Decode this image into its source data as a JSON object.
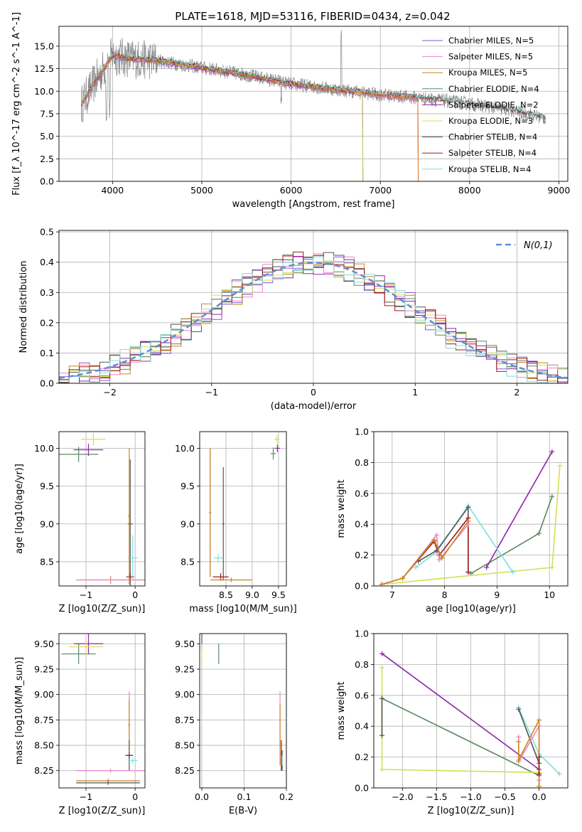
{
  "figure": {
    "title": "PLATE=1618, MJD=53116, FIBERID=0434, z=0.042"
  },
  "colors": {
    "Chabrier MILES": "#8a56d8",
    "Salpeter MILES": "#ee82c8",
    "Kroupa MILES": "#c8871e",
    "Chabrier ELODIE": "#5a8a63",
    "Salpeter ELODIE": "#8e24aa",
    "Kroupa ELODIE": "#d2e052",
    "Chabrier STELIB": "#555555",
    "Salpeter STELIB": "#a01818",
    "Kroupa STELIB": "#80dede",
    "spectrum": "#888888",
    "model_orange": "#e07a2c",
    "normal_curve": "#5b8fd6",
    "grid": "#b0b0b0"
  },
  "chart_data": [
    {
      "id": "spectrum",
      "type": "line",
      "xlabel": "wavelength [Angstrom, rest frame]",
      "ylabel": "Flux [f_λ 10^-17 erg cm^-2 s^-1 A^-1]",
      "xlim": [
        3400,
        9100
      ],
      "ylim": [
        0,
        17.2
      ],
      "xticks": [
        4000,
        5000,
        6000,
        7000,
        8000,
        9000
      ],
      "yticks": [
        0.0,
        2.5,
        5.0,
        7.5,
        10.0,
        12.5,
        15.0
      ],
      "legend": "top-right",
      "continuum": {
        "x": [
          3650,
          3800,
          4000,
          4200,
          4500,
          5000,
          5500,
          6000,
          6500,
          7000,
          7500,
          8000,
          8500,
          8850
        ],
        "y": [
          8.5,
          11.0,
          14.0,
          13.6,
          13.4,
          12.6,
          11.8,
          10.8,
          10.2,
          9.6,
          9.2,
          8.6,
          7.8,
          7.0
        ]
      },
      "series": [
        {
          "name": "Chabrier MILES, N_SSP=5",
          "end_x": 7420
        },
        {
          "name": "Salpeter MILES, N_SSP=5",
          "end_x": 7420
        },
        {
          "name": "Kroupa MILES, N_SSP=5",
          "end_x": 7420
        },
        {
          "name": "Chabrier ELODIE, N_SSP=4",
          "end_x": 6800
        },
        {
          "name": "Salpeter ELODIE, N_SSP=2",
          "end_x": 6800
        },
        {
          "name": "Kroupa ELODIE, N_SSP=3",
          "end_x": 6800
        },
        {
          "name": "Chabrier STELIB, N_SSP=4",
          "end_x": 8850
        },
        {
          "name": "Salpeter STELIB, N_SSP=4",
          "end_x": 8850
        },
        {
          "name": "Kroupa STELIB, N_SSP=4",
          "end_x": 8850
        }
      ]
    },
    {
      "id": "residuals",
      "type": "line",
      "xlabel": "(data-model)/error",
      "ylabel": "Normed distribution",
      "xlim": [
        -2.5,
        2.5
      ],
      "ylim": [
        0,
        0.505
      ],
      "xticks": [
        -2,
        -1,
        0,
        1,
        2
      ],
      "yticks": [
        0.0,
        0.1,
        0.2,
        0.3,
        0.4,
        0.5
      ],
      "legend": "top-right",
      "normal_label": "N(0,1)",
      "bin_width": 0.1
    },
    {
      "id": "age_vs_Z",
      "type": "scatter",
      "xlabel": "Z [log10(Z/Z_sun)]",
      "ylabel": "age  [log10(age/yr)]",
      "xlim": [
        -1.55,
        0.2
      ],
      "ylim": [
        8.18,
        10.22
      ],
      "xticks": [
        -1,
        0
      ],
      "yticks": [
        8.5,
        9.0,
        9.5,
        10.0
      ],
      "points": [
        {
          "s": "Chabrier ELODIE",
          "x": -1.15,
          "y": 9.92,
          "ex": 0.4,
          "ey": 0.1
        },
        {
          "s": "Salpeter ELODIE",
          "x": -0.95,
          "y": 9.98,
          "ex": 0.3,
          "ey": 0.08
        },
        {
          "s": "Kroupa ELODIE",
          "x": -0.85,
          "y": 10.12,
          "ex": 0.25,
          "ey": 0.08
        },
        {
          "s": "Chabrier STELIB",
          "x": -0.1,
          "y": 9.0,
          "ex": 0.05,
          "ey": 0.85
        },
        {
          "s": "Salpeter STELIB",
          "x": -0.1,
          "y": 8.3,
          "ex": 0.08,
          "ey": 0.05
        },
        {
          "s": "Kroupa STELIB",
          "x": -0.05,
          "y": 8.55,
          "ex": 0.1,
          "ey": 0.3
        },
        {
          "s": "Kroupa MILES",
          "x": -0.5,
          "y": 8.26,
          "ex": 0.7,
          "ey": 0.05
        },
        {
          "s": "Salpeter MILES",
          "x": -0.5,
          "y": 8.26,
          "ex": 0.7,
          "ey": 0.03
        },
        {
          "s": "Kroupa MILES",
          "x": -0.12,
          "y": 9.1,
          "ex": 0.03,
          "ey": 0.9
        }
      ]
    },
    {
      "id": "age_vs_mass",
      "type": "scatter",
      "xlabel": "mass [log10(M/M_sun)]",
      "ylabel": "",
      "xlim": [
        8.0,
        9.65
      ],
      "ylim": [
        8.18,
        10.22
      ],
      "xticks": [
        8.5,
        9.0,
        9.5
      ],
      "yticks": [
        8.5,
        9.0,
        9.5,
        10.0
      ],
      "points": [
        {
          "s": "Chabrier ELODIE",
          "x": 9.4,
          "y": 9.93,
          "ex": 0.05,
          "ey": 0.08
        },
        {
          "s": "Salpeter ELODIE",
          "x": 9.48,
          "y": 10.0,
          "ex": 0.05,
          "ey": 0.05
        },
        {
          "s": "Kroupa ELODIE",
          "x": 9.47,
          "y": 10.12,
          "ex": 0.05,
          "ey": 0.05
        },
        {
          "s": "Salpeter MILES",
          "x": 8.2,
          "y": 9.15,
          "ex": 0.02,
          "ey": 0.85
        },
        {
          "s": "Kroupa MILES",
          "x": 8.2,
          "y": 9.15,
          "ex": 0.02,
          "ey": 0.85
        },
        {
          "s": "Chabrier STELIB",
          "x": 8.45,
          "y": 9.0,
          "ex": 0.02,
          "ey": 0.75
        },
        {
          "s": "Salpeter STELIB",
          "x": 8.4,
          "y": 8.3,
          "ex": 0.15,
          "ey": 0.05
        },
        {
          "s": "Kroupa STELIB",
          "x": 8.35,
          "y": 8.55,
          "ex": 0.08,
          "ey": 0.05
        },
        {
          "s": "Kroupa MILES",
          "x": 8.6,
          "y": 8.26,
          "ex": 0.4,
          "ey": 0.03
        }
      ]
    },
    {
      "id": "weight_vs_age",
      "type": "line",
      "xlabel": "age  [log10(age/yr)]",
      "ylabel": "mass weight",
      "xlim": [
        6.65,
        10.35
      ],
      "ylim": [
        0,
        1.0
      ],
      "xticks": [
        7,
        8,
        9,
        10
      ],
      "yticks": [
        0.0,
        0.2,
        0.4,
        0.6,
        0.8,
        1.0
      ],
      "series": [
        {
          "s": "Chabrier ELODIE",
          "x": [
            8.5,
            9.8,
            10.05
          ],
          "y": [
            0.08,
            0.34,
            0.58
          ]
        },
        {
          "s": "Salpeter ELODIE",
          "x": [
            8.8,
            10.05
          ],
          "y": [
            0.12,
            0.87
          ]
        },
        {
          "s": "Kroupa ELODIE",
          "x": [
            6.8,
            10.05,
            10.2
          ],
          "y": [
            0.01,
            0.12,
            0.78
          ]
        },
        {
          "s": "Kroupa STELIB",
          "x": [
            7.45,
            7.85,
            8.45,
            9.3
          ],
          "y": [
            0.12,
            0.22,
            0.52,
            0.09
          ]
        },
        {
          "s": "Chabrier STELIB",
          "x": [
            7.5,
            7.85,
            8.45,
            8.45
          ],
          "y": [
            0.16,
            0.23,
            0.51,
            0.09
          ]
        },
        {
          "s": "Salpeter STELIB",
          "x": [
            6.8,
            7.2,
            7.8,
            7.9,
            8.45,
            8.45
          ],
          "y": [
            0.01,
            0.05,
            0.29,
            0.2,
            0.44,
            0.09
          ]
        },
        {
          "s": "Salpeter MILES",
          "x": [
            6.8,
            7.2,
            7.85,
            7.9,
            8.45
          ],
          "y": [
            0.01,
            0.05,
            0.33,
            0.17,
            0.4
          ]
        },
        {
          "s": "Kroupa MILES",
          "x": [
            6.8,
            7.2,
            7.8,
            7.95,
            8.45
          ],
          "y": [
            0.01,
            0.05,
            0.3,
            0.18,
            0.42
          ]
        }
      ]
    },
    {
      "id": "mass_vs_Z",
      "type": "scatter",
      "xlabel": "Z [log10(Z/Z_sun)]",
      "ylabel": "mass [log10(M/M_sun)]",
      "xlim": [
        -1.55,
        0.2
      ],
      "ylim": [
        8.08,
        9.6
      ],
      "xticks": [
        -1,
        0
      ],
      "yticks": [
        8.25,
        8.5,
        8.75,
        9.0,
        9.25,
        9.5
      ],
      "points": [
        {
          "s": "Chabrier ELODIE",
          "x": -1.15,
          "y": 9.4,
          "ex": 0.35,
          "ey": 0.1
        },
        {
          "s": "Salpeter ELODIE",
          "x": -0.95,
          "y": 9.5,
          "ex": 0.3,
          "ey": 0.1
        },
        {
          "s": "Kroupa ELODIE",
          "x": -1.0,
          "y": 9.47,
          "ex": 0.35,
          "ey": 0.08
        },
        {
          "s": "Salpeter MILES",
          "x": -0.12,
          "y": 8.75,
          "ex": 0.02,
          "ey": 0.28
        },
        {
          "s": "Kroupa MILES",
          "x": -0.12,
          "y": 8.7,
          "ex": 0.02,
          "ey": 0.25
        },
        {
          "s": "Chabrier STELIB",
          "x": -0.12,
          "y": 8.4,
          "ex": 0.08,
          "ey": 0.15
        },
        {
          "s": "Salpeter STELIB",
          "x": -0.12,
          "y": 8.4,
          "ex": 0.06,
          "ey": 0.03
        },
        {
          "s": "Kroupa STELIB",
          "x": -0.05,
          "y": 8.35,
          "ex": 0.1,
          "ey": 0.03
        },
        {
          "s": "Salpeter MILES",
          "x": -0.5,
          "y": 8.25,
          "ex": 0.7,
          "ey": 0.02
        },
        {
          "s": "Kroupa MILES",
          "x": -0.55,
          "y": 8.15,
          "ex": 0.65,
          "ey": 0.02
        },
        {
          "s": "Chabrier STELIB",
          "x": -0.55,
          "y": 8.13,
          "ex": 0.65,
          "ey": 0.02
        }
      ]
    },
    {
      "id": "mass_vs_ebv",
      "type": "scatter",
      "xlabel": "E(B-V)",
      "ylabel": "",
      "xlim": [
        -0.005,
        0.2
      ],
      "ylim": [
        8.08,
        9.6
      ],
      "xticks": [
        0.0,
        0.1,
        0.2
      ],
      "yticks": [
        8.25,
        8.5,
        8.75,
        9.0,
        9.25,
        9.5
      ],
      "points": [
        {
          "s": "Salpeter ELODIE",
          "x": 0.0,
          "y": 9.52,
          "ex": 0.0,
          "ey": 0.08
        },
        {
          "s": "Kroupa ELODIE",
          "x": 0.0,
          "y": 9.4,
          "ex": 0.0,
          "ey": 0.1
        },
        {
          "s": "Chabrier ELODIE",
          "x": 0.04,
          "y": 9.4,
          "ex": 0.0,
          "ey": 0.1
        },
        {
          "s": "Salpeter MILES",
          "x": 0.185,
          "y": 8.75,
          "ex": 0.0,
          "ey": 0.28
        },
        {
          "s": "Kroupa MILES",
          "x": 0.185,
          "y": 8.6,
          "ex": 0.0,
          "ey": 0.3
        },
        {
          "s": "Salpeter STELIB",
          "x": 0.188,
          "y": 8.4,
          "ex": 0.0,
          "ey": 0.15
        },
        {
          "s": "Chabrier STELIB",
          "x": 0.19,
          "y": 8.35,
          "ex": 0.0,
          "ey": 0.1
        },
        {
          "s": "Kroupa STELIB",
          "x": 0.19,
          "y": 8.35,
          "ex": 0.0,
          "ey": 0.05
        }
      ]
    },
    {
      "id": "weight_vs_Z",
      "type": "line",
      "xlabel": "Z [log10(Z/Z_sun)]",
      "ylabel": "mass weight",
      "xlim": [
        -2.42,
        0.42
      ],
      "ylim": [
        0,
        1.0
      ],
      "xticks": [
        -2.0,
        -1.5,
        -1.0,
        -0.5,
        0.0
      ],
      "yticks": [
        0.0,
        0.2,
        0.4,
        0.6,
        0.8,
        1.0
      ],
      "series": [
        {
          "s": "Salpeter ELODIE",
          "x": [
            -2.3,
            0.0
          ],
          "y": [
            0.87,
            0.12
          ]
        },
        {
          "s": "Chabrier ELODIE",
          "x": [
            -2.3,
            0.0
          ],
          "y": [
            0.58,
            0.08
          ]
        },
        {
          "s": "Kroupa ELODIE",
          "x": [
            -2.3,
            -2.3,
            0.0,
            0.0
          ],
          "y": [
            0.78,
            0.12,
            0.1,
            0.01
          ]
        },
        {
          "s": "Chabrier STELIB",
          "x": [
            -2.3,
            -2.3
          ],
          "y": [
            0.34,
            0.58
          ]
        },
        {
          "s": "Kroupa STELIB",
          "x": [
            -0.3,
            0.0,
            0.3
          ],
          "y": [
            0.52,
            0.22,
            0.09
          ]
        },
        {
          "s": "Chabrier STELIB",
          "x": [
            -0.3,
            0.0,
            0.0
          ],
          "y": [
            0.51,
            0.16,
            0.09
          ]
        },
        {
          "s": "Salpeter MILES",
          "x": [
            -0.3,
            -0.3,
            0.0,
            0.0
          ],
          "y": [
            0.33,
            0.17,
            0.4,
            0.05
          ]
        },
        {
          "s": "Kroupa MILES",
          "x": [
            -0.3,
            -0.3,
            0.0,
            0.0
          ],
          "y": [
            0.3,
            0.18,
            0.44,
            0.01
          ]
        },
        {
          "s": "Salpeter STELIB",
          "x": [
            0.0,
            0.0
          ],
          "y": [
            0.09,
            0.2
          ]
        }
      ]
    }
  ]
}
